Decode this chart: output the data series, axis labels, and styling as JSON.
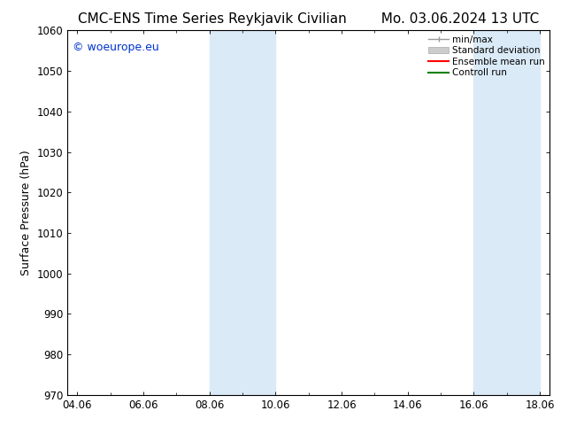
{
  "title_left": "CMC-ENS Time Series Reykjavik Civilian",
  "title_right": "Mo. 03.06.2024 13 UTC",
  "ylabel": "Surface Pressure (hPa)",
  "ylim": [
    970,
    1060
  ],
  "yticks": [
    970,
    980,
    990,
    1000,
    1010,
    1020,
    1030,
    1040,
    1050,
    1060
  ],
  "xticks": [
    "04.06",
    "06.06",
    "08.06",
    "10.06",
    "12.06",
    "14.06",
    "16.06",
    "18.06"
  ],
  "xtick_positions": [
    0,
    2,
    4,
    6,
    8,
    10,
    12,
    14
  ],
  "shaded_regions": [
    {
      "start": 4.0,
      "end": 5.0
    },
    {
      "start": 5.0,
      "end": 6.0
    },
    {
      "start": 12.0,
      "end": 13.0
    },
    {
      "start": 13.0,
      "end": 14.0
    }
  ],
  "shaded_color": "#daeaf7",
  "background_color": "#ffffff",
  "watermark": "© woeurope.eu",
  "watermark_color": "#0033cc",
  "legend_items": [
    {
      "label": "min/max",
      "color": "#aaaaaa",
      "lw": 1.2
    },
    {
      "label": "Standard deviation",
      "color": "#cccccc",
      "lw": 6
    },
    {
      "label": "Ensemble mean run",
      "color": "#ff0000",
      "lw": 1.5
    },
    {
      "label": "Controll run",
      "color": "#008000",
      "lw": 1.5
    }
  ],
  "title_fontsize": 11,
  "tick_fontsize": 8.5,
  "label_fontsize": 9,
  "legend_fontsize": 7.5
}
